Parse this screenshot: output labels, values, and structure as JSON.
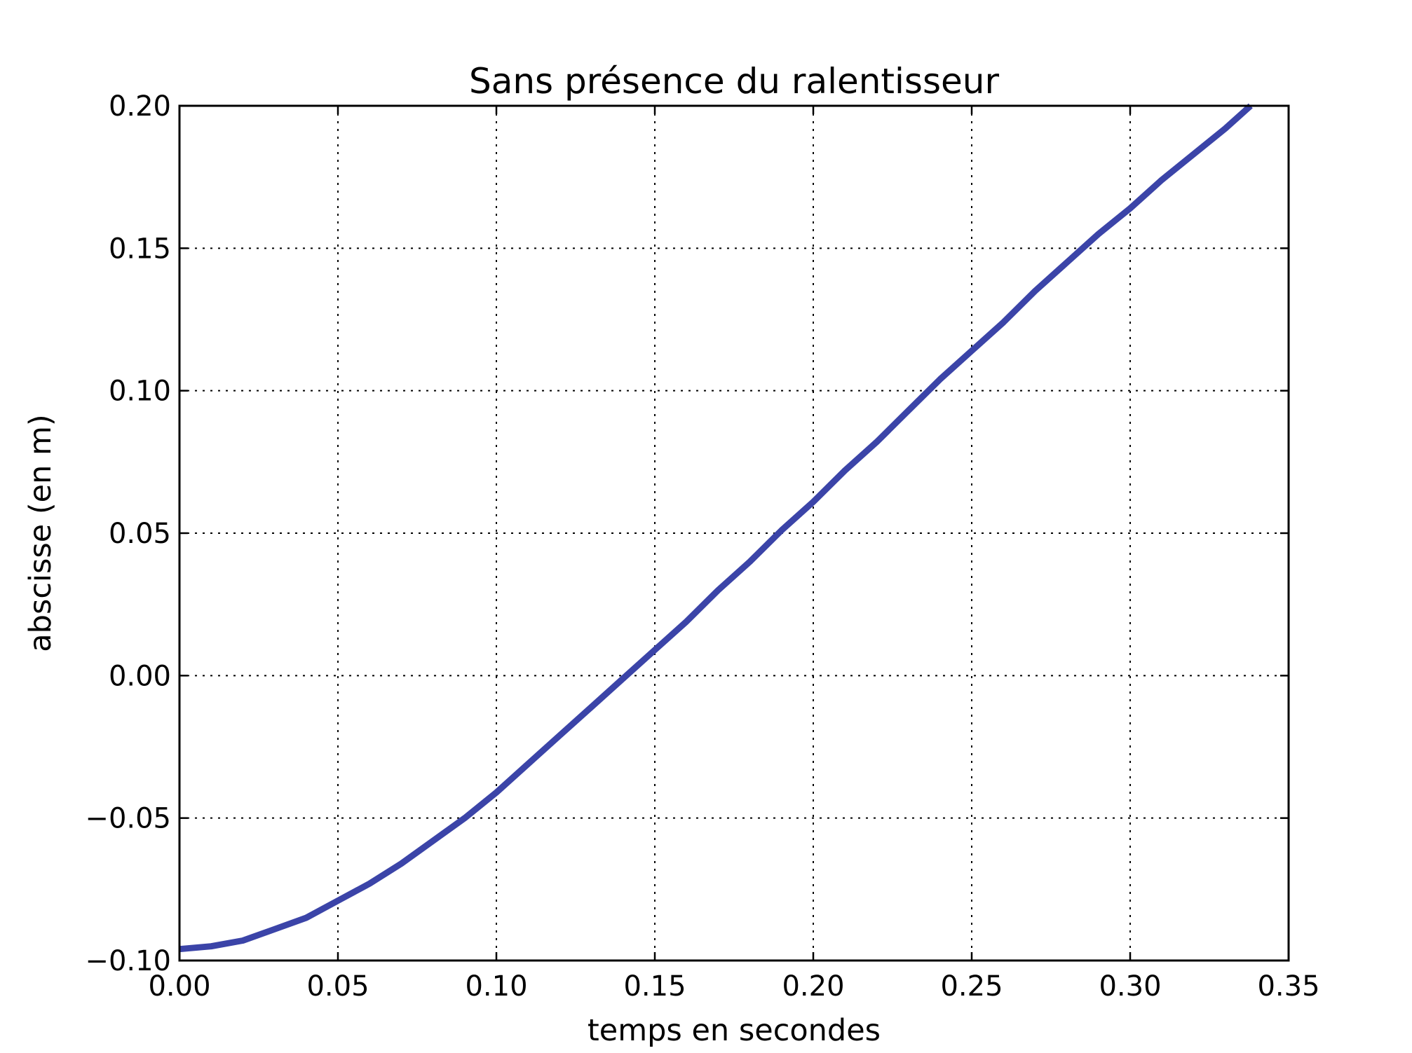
{
  "chart_data": {
    "type": "line",
    "title": "Sans présence du ralentisseur",
    "xlabel": "temps en secondes",
    "ylabel": "abscisse (en m)",
    "xlim": [
      0.0,
      0.35
    ],
    "ylim": [
      -0.1,
      0.2
    ],
    "xticks": [
      0.0,
      0.05,
      0.1,
      0.15,
      0.2,
      0.25,
      0.3,
      0.35
    ],
    "yticks": [
      -0.1,
      -0.05,
      0.0,
      0.05,
      0.1,
      0.15,
      0.2
    ],
    "xtick_labels": [
      "0.00",
      "0.05",
      "0.10",
      "0.15",
      "0.20",
      "0.25",
      "0.30",
      "0.35"
    ],
    "ytick_labels": [
      "−0.10",
      "−0.05",
      "0.00",
      "0.05",
      "0.10",
      "0.15",
      "0.20"
    ],
    "grid": true,
    "legend": false,
    "series": [
      {
        "color": "#3b44a8",
        "x": [
          0.0,
          0.01,
          0.02,
          0.03,
          0.04,
          0.05,
          0.06,
          0.07,
          0.08,
          0.09,
          0.1,
          0.11,
          0.12,
          0.13,
          0.14,
          0.15,
          0.16,
          0.17,
          0.18,
          0.19,
          0.2,
          0.21,
          0.22,
          0.23,
          0.24,
          0.25,
          0.26,
          0.27,
          0.28,
          0.29,
          0.3,
          0.31,
          0.32,
          0.33,
          0.338
        ],
        "y": [
          -0.096,
          -0.095,
          -0.093,
          -0.089,
          -0.085,
          -0.079,
          -0.073,
          -0.066,
          -0.058,
          -0.05,
          -0.041,
          -0.031,
          -0.021,
          -0.011,
          -0.001,
          0.009,
          0.019,
          0.03,
          0.04,
          0.051,
          0.061,
          0.072,
          0.082,
          0.093,
          0.104,
          0.114,
          0.124,
          0.135,
          0.145,
          0.155,
          0.164,
          0.174,
          0.183,
          0.192,
          0.2
        ]
      }
    ]
  }
}
